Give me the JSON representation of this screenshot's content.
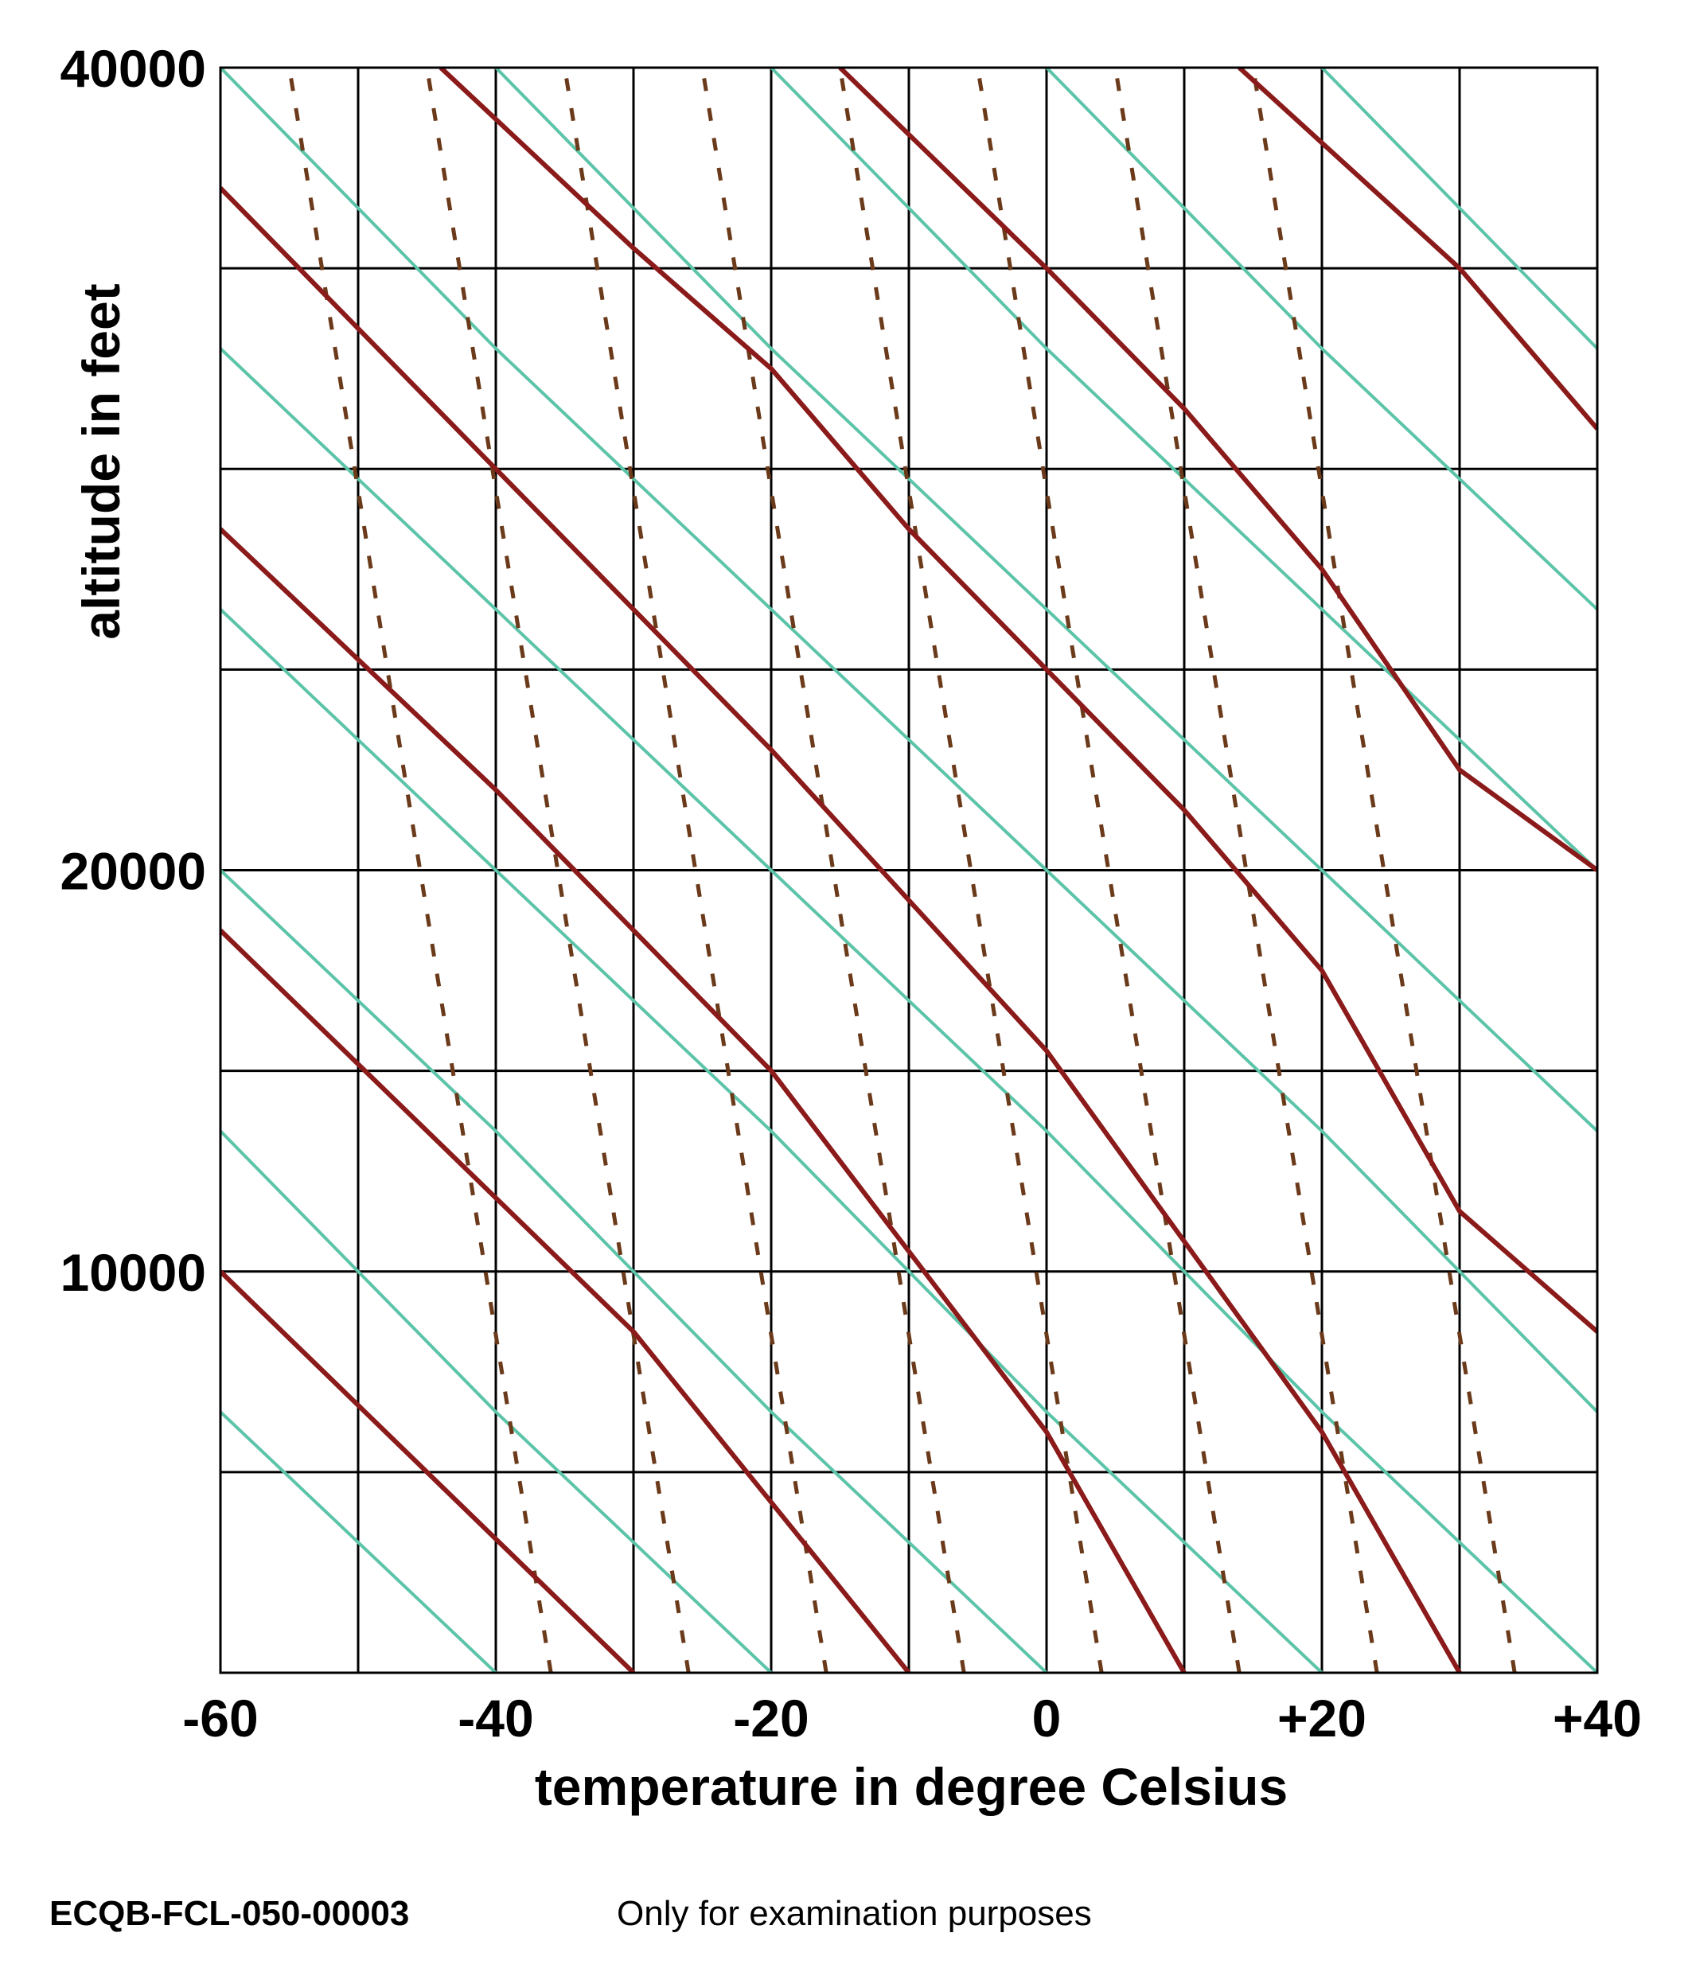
{
  "chart_data": {
    "type": "line",
    "title": "",
    "xlabel": "temperature in degree Celsius",
    "ylabel": "altitude in feet",
    "xlim": [
      -60,
      40
    ],
    "ylim": [
      0,
      40000
    ],
    "x_ticks": [
      -60,
      -50,
      -40,
      -30,
      -20,
      -10,
      0,
      10,
      20,
      30,
      40
    ],
    "x_tick_labels": [
      "-60",
      "",
      "-40",
      "",
      "-20",
      "",
      "0",
      "",
      "+20",
      "",
      "+40"
    ],
    "y_ticks": [
      0,
      5000,
      10000,
      15000,
      20000,
      25000,
      30000,
      35000,
      40000
    ],
    "y_tick_labels": [
      "",
      "",
      "10000",
      "",
      "20000",
      "",
      "",
      "",
      "40000"
    ],
    "grid": true,
    "colors": {
      "dry_adiabat": "#8b1a1a",
      "moist_adiabat": "#8b1a1a",
      "isohume": "#6b3a1a",
      "green": "#5cc4a8",
      "grid": "#000000"
    },
    "series": [
      {
        "style": "dry-adiabat",
        "values": [
          [
            -60,
            10000
          ],
          [
            -30,
            0
          ]
        ]
      },
      {
        "style": "dry-adiabat",
        "values": [
          [
            -60,
            18500
          ],
          [
            -30,
            8500
          ],
          [
            -10,
            0
          ]
        ]
      },
      {
        "style": "dry-adiabat",
        "values": [
          [
            -60,
            28500
          ],
          [
            -40,
            22000
          ],
          [
            -20,
            15000
          ],
          [
            0,
            6000
          ],
          [
            10,
            0
          ]
        ]
      },
      {
        "style": "dry-adiabat",
        "values": [
          [
            -60,
            37000
          ],
          [
            -40,
            30000
          ],
          [
            -20,
            23000
          ],
          [
            0,
            15500
          ],
          [
            20,
            6000
          ],
          [
            30,
            0
          ]
        ]
      },
      {
        "style": "dry-adiabat",
        "values": [
          [
            -44,
            40000
          ],
          [
            -30,
            35500
          ],
          [
            -20,
            32500
          ],
          [
            -10,
            28500
          ],
          [
            0,
            25000
          ],
          [
            10,
            21500
          ],
          [
            20,
            17500
          ],
          [
            30,
            11500
          ],
          [
            40,
            8500
          ]
        ]
      },
      {
        "style": "dry-adiabat",
        "values": [
          [
            -15,
            40000
          ],
          [
            0,
            35000
          ],
          [
            10,
            31500
          ],
          [
            20,
            27500
          ],
          [
            30,
            22500
          ],
          [
            40,
            20000
          ]
        ]
      },
      {
        "style": "dry-adiabat",
        "values": [
          [
            14,
            40000
          ],
          [
            30,
            35000
          ],
          [
            40,
            31000
          ]
        ]
      },
      {
        "style": "saturated-adiabat",
        "values": [
          [
            -60,
            6500
          ],
          [
            -40,
            0
          ]
        ]
      },
      {
        "style": "saturated-adiabat",
        "values": [
          [
            -60,
            13500
          ],
          [
            -40,
            6500
          ],
          [
            -20,
            0
          ]
        ]
      },
      {
        "style": "saturated-adiabat",
        "values": [
          [
            -60,
            20000
          ],
          [
            -40,
            13500
          ],
          [
            -20,
            6500
          ],
          [
            0,
            0
          ]
        ]
      },
      {
        "style": "saturated-adiabat",
        "values": [
          [
            -60,
            26500
          ],
          [
            -40,
            20000
          ],
          [
            -20,
            13500
          ],
          [
            0,
            6500
          ],
          [
            20,
            0
          ]
        ]
      },
      {
        "style": "saturated-adiabat",
        "values": [
          [
            -60,
            33000
          ],
          [
            -40,
            26500
          ],
          [
            -20,
            20000
          ],
          [
            0,
            13500
          ],
          [
            20,
            6500
          ],
          [
            40,
            0
          ]
        ]
      },
      {
        "style": "saturated-adiabat",
        "values": [
          [
            -60,
            40000
          ],
          [
            -40,
            33000
          ],
          [
            -20,
            26500
          ],
          [
            0,
            20000
          ],
          [
            20,
            13500
          ],
          [
            40,
            6500
          ]
        ]
      },
      {
        "style": "saturated-adiabat",
        "values": [
          [
            -40,
            40000
          ],
          [
            -20,
            33000
          ],
          [
            0,
            26500
          ],
          [
            20,
            20000
          ],
          [
            40,
            13500
          ]
        ]
      },
      {
        "style": "saturated-adiabat",
        "values": [
          [
            -20,
            40000
          ],
          [
            0,
            33000
          ],
          [
            20,
            26500
          ],
          [
            40,
            20000
          ]
        ]
      },
      {
        "style": "saturated-adiabat",
        "values": [
          [
            0,
            40000
          ],
          [
            20,
            33000
          ],
          [
            40,
            26500
          ]
        ]
      },
      {
        "style": "saturated-adiabat",
        "values": [
          [
            20,
            40000
          ],
          [
            40,
            33000
          ]
        ]
      },
      {
        "style": "isohume",
        "values": [
          [
            -36,
            0
          ],
          [
            -55,
            40000
          ]
        ]
      },
      {
        "style": "isohume",
        "values": [
          [
            -26,
            0
          ],
          [
            -45,
            40000
          ]
        ]
      },
      {
        "style": "isohume",
        "values": [
          [
            -16,
            0
          ],
          [
            -35,
            40000
          ]
        ]
      },
      {
        "style": "isohume",
        "values": [
          [
            -6,
            0
          ],
          [
            -25,
            40000
          ]
        ]
      },
      {
        "style": "isohume",
        "values": [
          [
            4,
            0
          ],
          [
            -15,
            40000
          ]
        ]
      },
      {
        "style": "isohume",
        "values": [
          [
            14,
            0
          ],
          [
            -5,
            40000
          ]
        ]
      },
      {
        "style": "isohume",
        "values": [
          [
            24,
            0
          ],
          [
            5,
            40000
          ]
        ]
      },
      {
        "style": "isohume",
        "values": [
          [
            34,
            0
          ],
          [
            15,
            40000
          ]
        ]
      }
    ]
  },
  "footer": {
    "code": "ECQB-FCL-050-00003",
    "note": "Only for examination purposes"
  }
}
